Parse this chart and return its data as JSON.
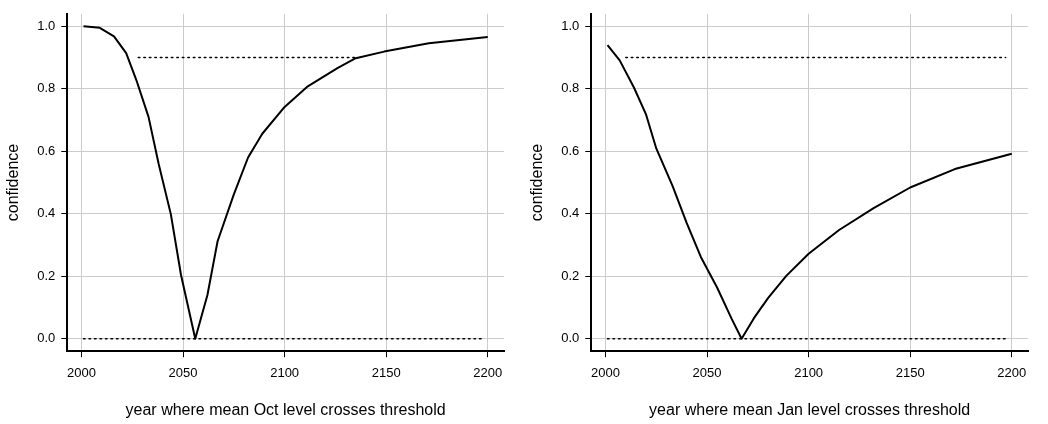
{
  "chart_data": [
    {
      "type": "line",
      "xlabel": "year where mean Oct level crosses threshold",
      "ylabel": "confidence",
      "xlim": [
        1993,
        2208
      ],
      "ylim": [
        -0.04,
        1.04
      ],
      "xticks": [
        2000,
        2050,
        2100,
        2150,
        2200
      ],
      "yticks": [
        {
          "value": 0,
          "label": "0.0"
        },
        {
          "value": 0.2,
          "label": "0.2"
        },
        {
          "value": 0.4,
          "label": "0.4"
        },
        {
          "value": 0.6,
          "label": "0.6"
        },
        {
          "value": 0.8,
          "label": "0.8"
        },
        {
          "value": 1,
          "label": "1.0"
        }
      ],
      "grid": true,
      "legend": false,
      "marker": "none",
      "series": [
        {
          "color": "#000000",
          "line_style": "solid",
          "x": [
            2001,
            2009,
            2016,
            2022,
            2027,
            2033,
            2038,
            2044,
            2049,
            2056,
            2062,
            2067,
            2075,
            2082,
            2089,
            2100,
            2111,
            2126,
            2135,
            2149,
            2171,
            2200
          ],
          "values": [
            1.0,
            0.995,
            0.968,
            0.914,
            0.828,
            0.71,
            0.559,
            0.398,
            0.204,
            0,
            0.14,
            0.312,
            0.462,
            0.58,
            0.656,
            0.742,
            0.806,
            0.866,
            0.898,
            0.919,
            0.946,
            0.966
          ]
        },
        {
          "color": "#000000",
          "line_style": "dotted",
          "x": [
            2028,
            2135
          ],
          "values": [
            0.9,
            0.9
          ]
        },
        {
          "color": "#000000",
          "line_style": "dotted",
          "x": [
            2001,
            2198
          ],
          "values": [
            0,
            0
          ]
        }
      ]
    },
    {
      "type": "line",
      "xlabel": "year where mean Jan level crosses threshold",
      "ylabel": "confidence",
      "xlim": [
        1993,
        2208
      ],
      "ylim": [
        -0.04,
        1.04
      ],
      "xticks": [
        2000,
        2050,
        2100,
        2150,
        2200
      ],
      "yticks": [
        {
          "value": 0,
          "label": "0.0"
        },
        {
          "value": 0.2,
          "label": "0.2"
        },
        {
          "value": 0.4,
          "label": "0.4"
        },
        {
          "value": 0.6,
          "label": "0.6"
        },
        {
          "value": 0.8,
          "label": "0.8"
        },
        {
          "value": 1,
          "label": "1.0"
        }
      ],
      "grid": true,
      "legend": false,
      "marker": "none",
      "series": [
        {
          "color": "#000000",
          "line_style": "solid",
          "x": [
            2001,
            2007,
            2014,
            2020,
            2025,
            2033,
            2040,
            2047,
            2055,
            2062,
            2067,
            2073,
            2080,
            2089,
            2100,
            2115,
            2132,
            2150,
            2172,
            2200
          ],
          "values": [
            0.94,
            0.891,
            0.804,
            0.717,
            0.609,
            0.489,
            0.37,
            0.261,
            0.163,
            0.065,
            0,
            0.065,
            0.13,
            0.201,
            0.272,
            0.348,
            0.418,
            0.484,
            0.543,
            0.592
          ]
        },
        {
          "color": "#000000",
          "line_style": "dotted",
          "x": [
            2010,
            2197
          ],
          "values": [
            0.9,
            0.9
          ]
        },
        {
          "color": "#000000",
          "line_style": "dotted",
          "x": [
            2001,
            2197
          ],
          "values": [
            0,
            0
          ]
        }
      ]
    }
  ]
}
